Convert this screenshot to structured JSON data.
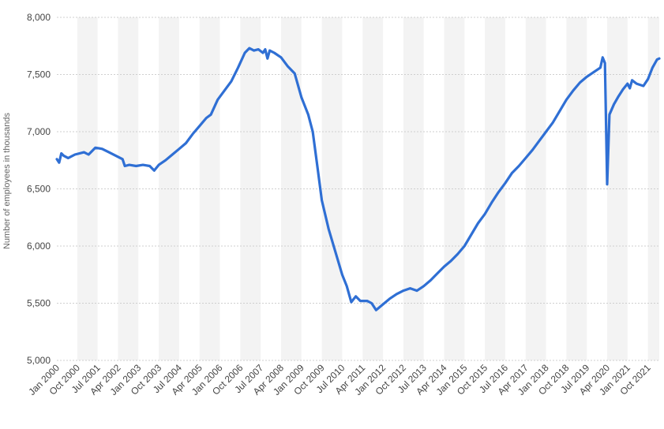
{
  "chart_data": {
    "type": "line",
    "title": "",
    "xlabel": "",
    "ylabel": "Number of employees in thousands",
    "ylim": [
      5000,
      8000
    ],
    "yticks": [
      5000,
      5500,
      6000,
      6500,
      7000,
      7500,
      8000
    ],
    "ytick_labels": [
      "5,000",
      "5,500",
      "6,000",
      "6,500",
      "7,000",
      "7,500",
      "8,000"
    ],
    "xlim": [
      "2000-01",
      "2022-03"
    ],
    "xtick_labels": [
      "Jan 2000",
      "Oct 2000",
      "Jul 2001",
      "Apr 2002",
      "Jan 2003",
      "Oct 2003",
      "Jul 2004",
      "Apr 2005",
      "Jan 2006",
      "Oct 2006",
      "Jul 2007",
      "Apr 2008",
      "Jan 2009",
      "Oct 2009",
      "Jul 2010",
      "Apr 2011",
      "Jan 2012",
      "Oct 2012",
      "Jul 2013",
      "Apr 2014",
      "Jan 2015",
      "Oct 2015",
      "Jul 2016",
      "Apr 2017",
      "Jan 2018",
      "Oct 2018",
      "Jul 2019",
      "Apr 2020",
      "Jan 2021",
      "Oct 2021"
    ],
    "xticks": [
      "2000-01",
      "2000-10",
      "2001-07",
      "2002-04",
      "2003-01",
      "2003-10",
      "2004-07",
      "2005-04",
      "2006-01",
      "2006-10",
      "2007-07",
      "2008-04",
      "2009-01",
      "2009-10",
      "2010-07",
      "2011-04",
      "2012-01",
      "2012-10",
      "2013-07",
      "2014-04",
      "2015-01",
      "2015-10",
      "2016-07",
      "2017-04",
      "2018-01",
      "2018-10",
      "2019-07",
      "2020-04",
      "2021-01",
      "2021-10"
    ],
    "grid": true,
    "colors": {
      "line": "#2f6fd4",
      "band": "#f3f3f3",
      "grid": "#cfcfcf",
      "text": "#444444"
    },
    "series": [
      {
        "points": [
          [
            "2000-01",
            6760
          ],
          [
            "2000-02",
            6730
          ],
          [
            "2000-03",
            6810
          ],
          [
            "2000-04",
            6790
          ],
          [
            "2000-06",
            6770
          ],
          [
            "2000-09",
            6800
          ],
          [
            "2001-01",
            6820
          ],
          [
            "2001-03",
            6800
          ],
          [
            "2001-06",
            6860
          ],
          [
            "2001-09",
            6850
          ],
          [
            "2001-12",
            6820
          ],
          [
            "2002-03",
            6790
          ],
          [
            "2002-06",
            6760
          ],
          [
            "2002-07",
            6700
          ],
          [
            "2002-09",
            6710
          ],
          [
            "2002-12",
            6700
          ],
          [
            "2003-03",
            6710
          ],
          [
            "2003-06",
            6700
          ],
          [
            "2003-08",
            6660
          ],
          [
            "2003-10",
            6710
          ],
          [
            "2004-01",
            6750
          ],
          [
            "2004-04",
            6800
          ],
          [
            "2004-07",
            6850
          ],
          [
            "2004-10",
            6900
          ],
          [
            "2005-01",
            6980
          ],
          [
            "2005-04",
            7050
          ],
          [
            "2005-07",
            7120
          ],
          [
            "2005-09",
            7150
          ],
          [
            "2005-12",
            7280
          ],
          [
            "2006-03",
            7360
          ],
          [
            "2006-06",
            7440
          ],
          [
            "2006-09",
            7560
          ],
          [
            "2006-12",
            7690
          ],
          [
            "2007-02",
            7730
          ],
          [
            "2007-04",
            7710
          ],
          [
            "2007-06",
            7720
          ],
          [
            "2007-08",
            7690
          ],
          [
            "2007-09",
            7720
          ],
          [
            "2007-10",
            7640
          ],
          [
            "2007-11",
            7710
          ],
          [
            "2008-01",
            7690
          ],
          [
            "2008-04",
            7650
          ],
          [
            "2008-07",
            7570
          ],
          [
            "2008-10",
            7510
          ],
          [
            "2009-01",
            7300
          ],
          [
            "2009-04",
            7150
          ],
          [
            "2009-06",
            7000
          ],
          [
            "2009-08",
            6700
          ],
          [
            "2009-10",
            6400
          ],
          [
            "2010-01",
            6150
          ],
          [
            "2010-04",
            5950
          ],
          [
            "2010-07",
            5750
          ],
          [
            "2010-09",
            5650
          ],
          [
            "2010-11",
            5510
          ],
          [
            "2011-01",
            5560
          ],
          [
            "2011-03",
            5520
          ],
          [
            "2011-06",
            5520
          ],
          [
            "2011-08",
            5500
          ],
          [
            "2011-10",
            5440
          ],
          [
            "2012-01",
            5490
          ],
          [
            "2012-04",
            5540
          ],
          [
            "2012-07",
            5580
          ],
          [
            "2012-10",
            5610
          ],
          [
            "2013-01",
            5630
          ],
          [
            "2013-04",
            5610
          ],
          [
            "2013-07",
            5650
          ],
          [
            "2013-10",
            5700
          ],
          [
            "2014-01",
            5760
          ],
          [
            "2014-04",
            5820
          ],
          [
            "2014-07",
            5870
          ],
          [
            "2014-10",
            5930
          ],
          [
            "2015-01",
            6000
          ],
          [
            "2015-04",
            6100
          ],
          [
            "2015-07",
            6200
          ],
          [
            "2015-10",
            6280
          ],
          [
            "2016-01",
            6380
          ],
          [
            "2016-04",
            6470
          ],
          [
            "2016-07",
            6550
          ],
          [
            "2016-10",
            6640
          ],
          [
            "2017-01",
            6700
          ],
          [
            "2017-04",
            6770
          ],
          [
            "2017-07",
            6840
          ],
          [
            "2017-10",
            6920
          ],
          [
            "2018-01",
            7000
          ],
          [
            "2018-04",
            7080
          ],
          [
            "2018-07",
            7180
          ],
          [
            "2018-10",
            7280
          ],
          [
            "2019-01",
            7360
          ],
          [
            "2019-04",
            7430
          ],
          [
            "2019-07",
            7480
          ],
          [
            "2019-10",
            7520
          ],
          [
            "2020-01",
            7560
          ],
          [
            "2020-02",
            7650
          ],
          [
            "2020-03",
            7600
          ],
          [
            "2020-04",
            6540
          ],
          [
            "2020-05",
            7150
          ],
          [
            "2020-07",
            7240
          ],
          [
            "2020-09",
            7310
          ],
          [
            "2020-11",
            7370
          ],
          [
            "2021-01",
            7420
          ],
          [
            "2021-02",
            7380
          ],
          [
            "2021-03",
            7450
          ],
          [
            "2021-05",
            7420
          ],
          [
            "2021-08",
            7400
          ],
          [
            "2021-10",
            7460
          ],
          [
            "2021-12",
            7560
          ],
          [
            "2022-02",
            7630
          ],
          [
            "2022-03",
            7640
          ]
        ]
      }
    ]
  }
}
